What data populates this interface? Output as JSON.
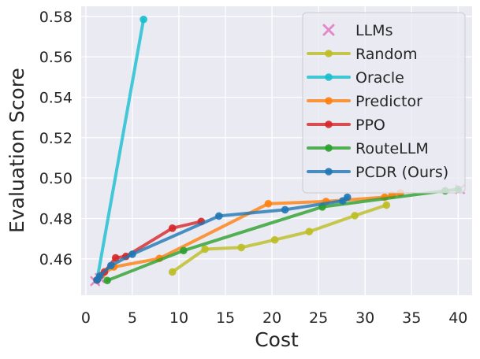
{
  "chart_data": {
    "type": "line",
    "title": "",
    "xlabel": "Cost",
    "ylabel": "Evaluation Score",
    "xlim": [
      -0.5,
      41.5
    ],
    "ylim": [
      0.442,
      0.585
    ],
    "xticks": [
      0,
      5,
      10,
      15,
      20,
      25,
      30,
      35,
      40
    ],
    "yticks": [
      0.46,
      0.48,
      0.5,
      0.52,
      0.54,
      0.56,
      0.58
    ],
    "ytick_labels": [
      "0.46",
      "0.48",
      "0.50",
      "0.52",
      "0.54",
      "0.56",
      "0.58"
    ],
    "grid": true,
    "background": "#eaeaf2",
    "legend_position": "top-right",
    "llms": {
      "name": "LLMs",
      "color": "#e377c2",
      "marker": "x",
      "points": [
        [
          1.0,
          0.449
        ],
        [
          1.5,
          0.4505
        ],
        [
          40.2,
          0.4945
        ]
      ]
    },
    "series": [
      {
        "name": "Random",
        "color": "#bcbd22",
        "points": [
          [
            9.3,
            0.4535
          ],
          [
            12.8,
            0.4648
          ],
          [
            16.7,
            0.4656
          ],
          [
            20.3,
            0.4694
          ],
          [
            24.0,
            0.4735
          ],
          [
            28.9,
            0.4814
          ],
          [
            32.3,
            0.4866
          ]
        ]
      },
      {
        "name": "Oracle",
        "color": "#17becf",
        "points": [
          [
            1.2,
            0.4495
          ],
          [
            6.2,
            0.5785
          ]
        ]
      },
      {
        "name": "Predictor",
        "color": "#ff7f0e",
        "points": [
          [
            1.2,
            0.4495
          ],
          [
            1.7,
            0.452
          ],
          [
            3.0,
            0.456
          ],
          [
            7.9,
            0.4602
          ],
          [
            19.6,
            0.4873
          ],
          [
            25.8,
            0.4884
          ],
          [
            32.1,
            0.4905
          ],
          [
            32.9,
            0.4915
          ],
          [
            33.8,
            0.4926
          ]
        ]
      },
      {
        "name": "PPO",
        "color": "#d62728",
        "points": [
          [
            1.2,
            0.4495
          ],
          [
            2.0,
            0.4535
          ],
          [
            3.2,
            0.4605
          ],
          [
            4.3,
            0.4612
          ],
          [
            9.3,
            0.4752
          ],
          [
            12.4,
            0.4785
          ]
        ]
      },
      {
        "name": "RouteLLM",
        "color": "#2ca02c",
        "points": [
          [
            2.3,
            0.4493
          ],
          [
            10.5,
            0.4641
          ],
          [
            25.4,
            0.4857
          ],
          [
            38.6,
            0.4937
          ],
          [
            40.0,
            0.4944
          ]
        ]
      },
      {
        "name": "PCDR (Ours)",
        "color": "#1f77b4",
        "points": [
          [
            1.2,
            0.4495
          ],
          [
            1.5,
            0.4515
          ],
          [
            2.7,
            0.4567
          ],
          [
            5.0,
            0.4623
          ],
          [
            14.3,
            0.4812
          ],
          [
            21.4,
            0.4843
          ],
          [
            27.6,
            0.4887
          ],
          [
            28.1,
            0.4905
          ]
        ]
      }
    ]
  }
}
